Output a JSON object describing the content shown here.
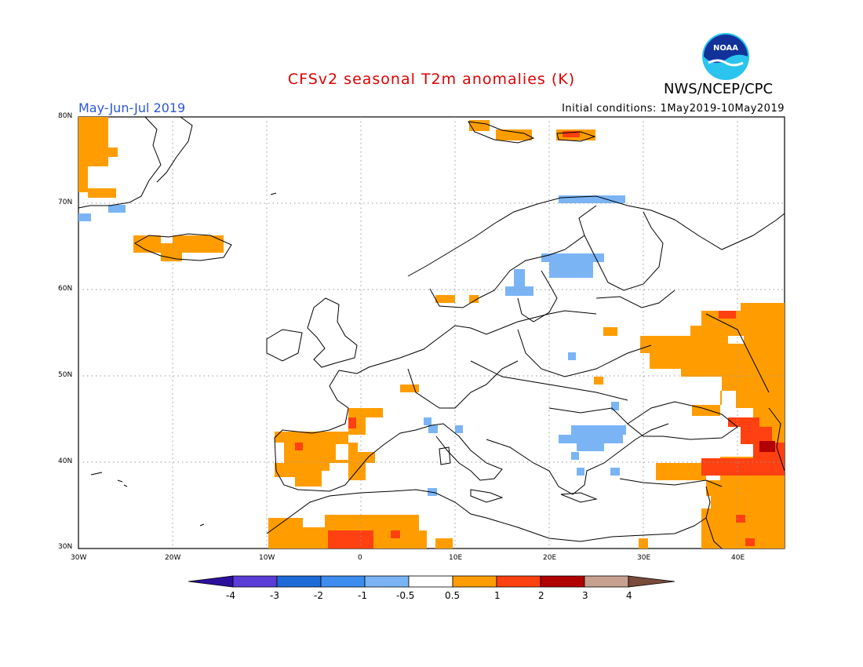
{
  "header": {
    "title": "CFSv2 seasonal T2m anomalies (K)",
    "title_color": "#e00000",
    "agency": "NWS/NCEP/CPC",
    "season": "May-Jun-Jul 2019",
    "season_color": "#2b57d9",
    "initial_conditions": "Initial conditions: 1May2019-10May2019",
    "logo_text": "NOAA"
  },
  "map": {
    "region": "Europe",
    "lat_range": [
      30,
      80
    ],
    "lon_range": [
      -30,
      45
    ],
    "lat_labels": [
      "80N",
      "70N",
      "60N",
      "50N",
      "40N",
      "30N"
    ],
    "lon_labels": [
      "30W",
      "20W",
      "10W",
      "0",
      "10E",
      "20E",
      "30E",
      "40E"
    ]
  },
  "colorbar": {
    "labels": [
      "-4",
      "-3",
      "-2",
      "-1",
      "-0.5",
      "0.5",
      "1",
      "2",
      "3",
      "4"
    ],
    "colors": [
      "#2d0f9e",
      "#5a3dd6",
      "#1f6ad9",
      "#3d8cf0",
      "#7ab4f5",
      "#ffffff",
      "#ff9d00",
      "#ff4010",
      "#b00000",
      "#c8a090",
      "#7a4a3a"
    ]
  }
}
